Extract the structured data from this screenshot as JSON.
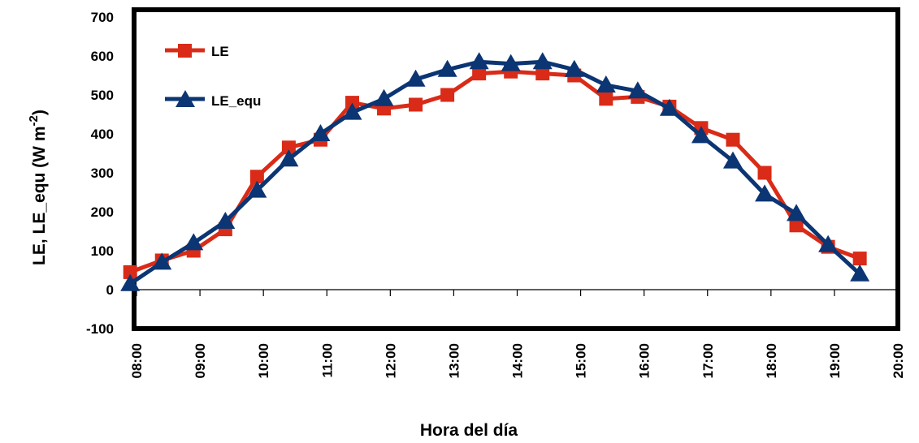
{
  "chart_data": {
    "type": "line",
    "xlabel": "Hora del día",
    "ylabel": "LE, LE_equ (W m",
    "ylabel_sup": "-2",
    "ylabel_close": ")",
    "ylim": [
      -100,
      700
    ],
    "yticks": [
      -100,
      0,
      100,
      200,
      300,
      400,
      500,
      600,
      700
    ],
    "ytick_labels": [
      "-100",
      "0",
      "100",
      "200",
      "300",
      "400",
      "500",
      "600",
      "700"
    ],
    "xlim": [
      8,
      20
    ],
    "xticks": [
      8,
      9,
      10,
      11,
      12,
      13,
      14,
      15,
      16,
      17,
      18,
      19,
      20
    ],
    "xtick_labels": [
      "08:00",
      "09:00",
      "10:00",
      "11:00",
      "12:00",
      "13:00",
      "14:00",
      "15:00",
      "16:00",
      "17:00",
      "18:00",
      "19:00",
      "20:00"
    ],
    "legend_position": "top-left",
    "grid": false,
    "series": [
      {
        "name": "LE",
        "color": "#d92b17",
        "marker": "square",
        "x": [
          7.9,
          8.4,
          8.9,
          9.4,
          9.9,
          10.4,
          10.9,
          11.4,
          11.9,
          12.4,
          12.9,
          13.4,
          13.9,
          14.4,
          14.9,
          15.4,
          15.9,
          16.4,
          16.9,
          17.4,
          17.9,
          18.4,
          18.9,
          19.4
        ],
        "values": [
          45,
          75,
          100,
          155,
          290,
          365,
          385,
          480,
          465,
          475,
          500,
          555,
          560,
          555,
          550,
          490,
          495,
          470,
          415,
          385,
          300,
          165,
          110,
          80
        ]
      },
      {
        "name": "LE_equ",
        "color": "#0b3573",
        "marker": "triangle",
        "x": [
          7.9,
          8.4,
          8.9,
          9.4,
          9.9,
          10.4,
          10.9,
          11.4,
          11.9,
          12.4,
          12.9,
          13.4,
          13.9,
          14.4,
          14.9,
          15.4,
          15.9,
          16.4,
          16.9,
          17.4,
          17.9,
          18.4,
          18.9,
          19.4
        ],
        "values": [
          15,
          70,
          120,
          175,
          255,
          335,
          400,
          455,
          490,
          540,
          565,
          585,
          580,
          585,
          565,
          525,
          510,
          465,
          395,
          330,
          245,
          195,
          115,
          40
        ]
      }
    ]
  }
}
